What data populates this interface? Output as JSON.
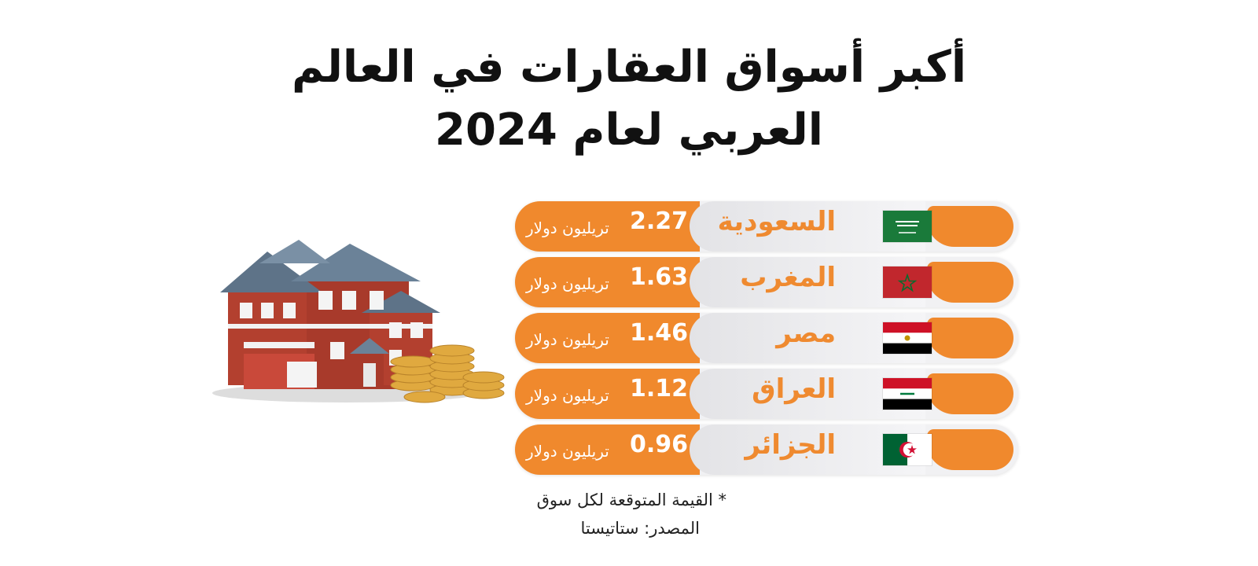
{
  "title": {
    "line1": "أكبر أسواق العقارات في العالم",
    "line2": "العربي لعام 2024"
  },
  "rows": [
    {
      "country": "السعودية",
      "value": "2.27",
      "unit": "تريليون دولار",
      "flag": "saudi-arabia"
    },
    {
      "country": "المغرب",
      "value": "1.63",
      "unit": "تريليون دولار",
      "flag": "morocco"
    },
    {
      "country": "مصر",
      "value": "1.46",
      "unit": "تريليون دولار",
      "flag": "egypt"
    },
    {
      "country": "العراق",
      "value": "1.12",
      "unit": "تريليون دولار",
      "flag": "iraq"
    },
    {
      "country": "الجزائر",
      "value": "0.96",
      "unit": "تريليون دولار",
      "flag": "algeria"
    }
  ],
  "footnote": "* القيمة المتوقعة لكل سوق",
  "source": "المصدر: ستاتيستا",
  "colors": {
    "accent": "#f0892d",
    "accent_text": "#ef8a30"
  }
}
